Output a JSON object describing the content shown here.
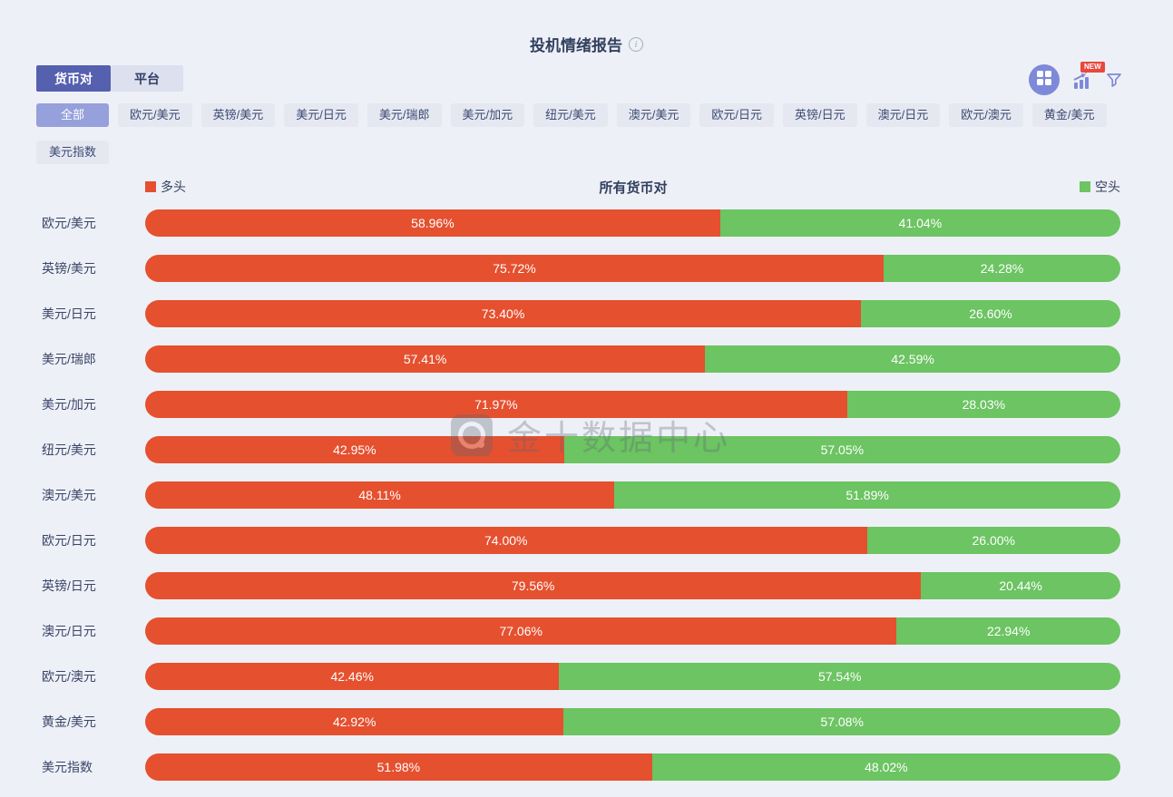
{
  "header": {
    "title": "投机情绪报告",
    "info_icon": "info-icon"
  },
  "tabs": [
    {
      "label": "货币对",
      "active": true
    },
    {
      "label": "平台",
      "active": false
    }
  ],
  "toolbar": {
    "icons": [
      "layout-grid-icon",
      "trend-chart-icon",
      "filter-funnel-icon"
    ],
    "new_badge": "NEW",
    "icon_color": "#7e89d8",
    "badge_color": "#e8483e"
  },
  "filters": {
    "rows": [
      [
        {
          "label": "全部",
          "active": true
        },
        {
          "label": "欧元/美元",
          "active": false
        },
        {
          "label": "英镑/美元",
          "active": false
        },
        {
          "label": "美元/日元",
          "active": false
        },
        {
          "label": "美元/瑞郎",
          "active": false
        },
        {
          "label": "美元/加元",
          "active": false
        },
        {
          "label": "纽元/美元",
          "active": false
        },
        {
          "label": "澳元/美元",
          "active": false
        },
        {
          "label": "欧元/日元",
          "active": false
        },
        {
          "label": "英镑/日元",
          "active": false
        },
        {
          "label": "澳元/日元",
          "active": false
        },
        {
          "label": "欧元/澳元",
          "active": false
        },
        {
          "label": "黄金/美元",
          "active": false
        }
      ],
      [
        {
          "label": "美元指数",
          "active": false
        }
      ]
    ]
  },
  "legend": {
    "long_label": "多头",
    "short_label": "空头",
    "long_color": "#e5502f",
    "short_color": "#6cc462"
  },
  "chart_data": {
    "type": "bar",
    "variant": "horizontal-stacked",
    "title": "所有货币对",
    "unit": "%",
    "xlim": [
      0,
      100
    ],
    "legend_position": "top",
    "value_format": "two-decimal-percent",
    "categories": [
      "欧元/美元",
      "英镑/美元",
      "美元/日元",
      "美元/瑞郎",
      "美元/加元",
      "纽元/美元",
      "澳元/美元",
      "欧元/日元",
      "英镑/日元",
      "澳元/日元",
      "欧元/澳元",
      "黄金/美元",
      "美元指数"
    ],
    "series": [
      {
        "name": "多头",
        "color": "#e5502f",
        "values": [
          58.96,
          75.72,
          73.4,
          57.41,
          71.97,
          42.95,
          48.11,
          74.0,
          79.56,
          77.06,
          42.46,
          42.92,
          51.98
        ]
      },
      {
        "name": "空头",
        "color": "#6cc462",
        "values": [
          41.04,
          24.28,
          26.6,
          42.59,
          28.03,
          57.05,
          51.89,
          26.0,
          20.44,
          22.94,
          57.54,
          57.08,
          48.02
        ]
      }
    ]
  },
  "watermark": {
    "text": "金十数据中心",
    "logo": "jin10-logo-icon"
  }
}
